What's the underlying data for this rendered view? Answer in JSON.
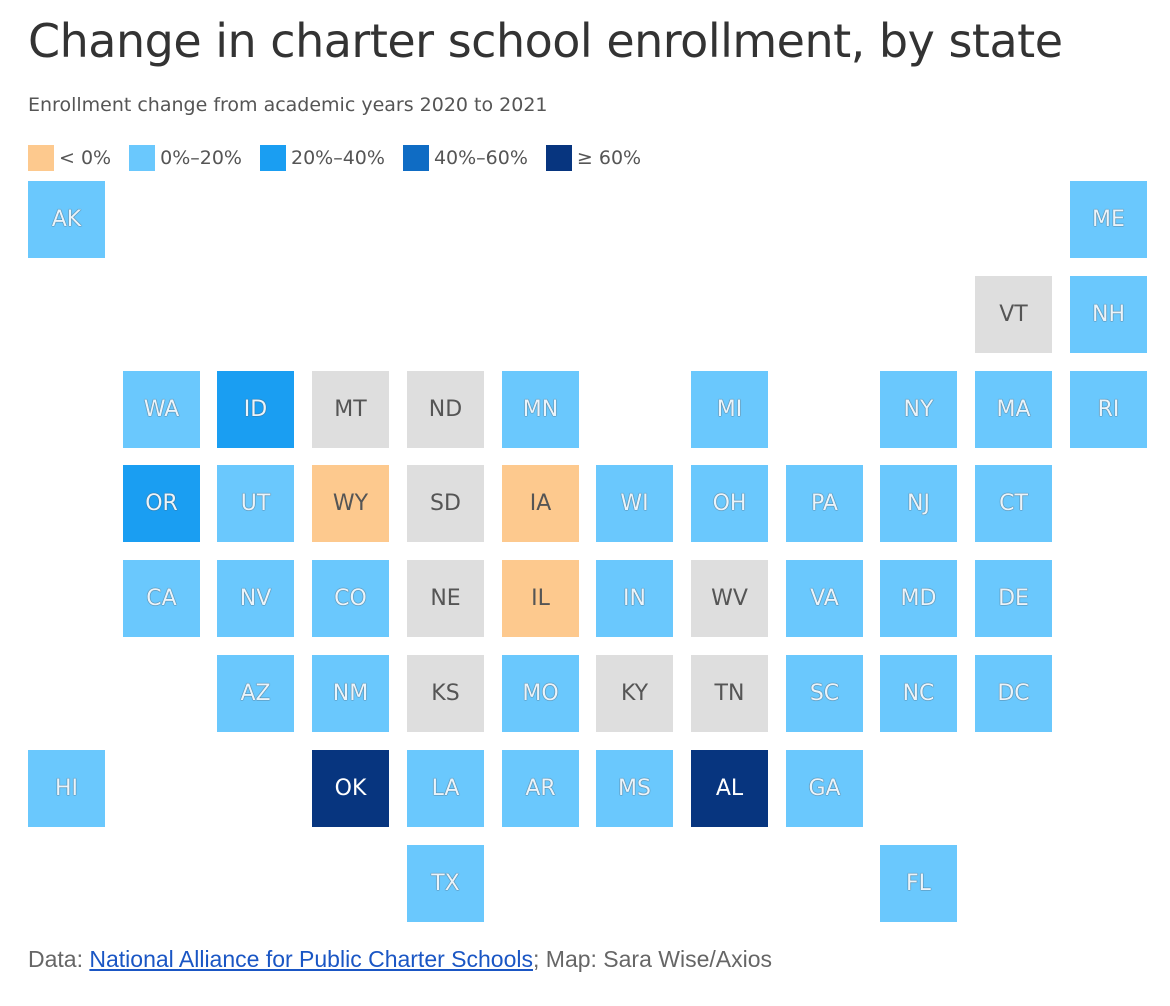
{
  "title": "Change in charter school enrollment, by state",
  "subtitle": "Enrollment change from academic years 2020 to 2021",
  "legend": [
    {
      "label": "< 0%",
      "color": "#fdc98e"
    },
    {
      "label": "0%–20%",
      "color": "#6ac8fd"
    },
    {
      "label": "20%–40%",
      "color": "#1a9ef2"
    },
    {
      "label": "40%–60%",
      "color": "#0f6cc4"
    },
    {
      "label": "≥ 60%",
      "color": "#07357f"
    }
  ],
  "no_data_color": "#dedede",
  "map_data": {
    "states": [
      {
        "abbr": "AK",
        "row": 0,
        "col": 0,
        "category": 1
      },
      {
        "abbr": "ME",
        "row": 0,
        "col": 11,
        "category": 1
      },
      {
        "abbr": "VT",
        "row": 1,
        "col": 10,
        "category": null
      },
      {
        "abbr": "NH",
        "row": 1,
        "col": 11,
        "category": 1
      },
      {
        "abbr": "WA",
        "row": 2,
        "col": 1,
        "category": 1
      },
      {
        "abbr": "ID",
        "row": 2,
        "col": 2,
        "category": 2
      },
      {
        "abbr": "MT",
        "row": 2,
        "col": 3,
        "category": null
      },
      {
        "abbr": "ND",
        "row": 2,
        "col": 4,
        "category": null
      },
      {
        "abbr": "MN",
        "row": 2,
        "col": 5,
        "category": 1
      },
      {
        "abbr": "MI",
        "row": 2,
        "col": 7,
        "category": 1
      },
      {
        "abbr": "NY",
        "row": 2,
        "col": 9,
        "category": 1
      },
      {
        "abbr": "MA",
        "row": 2,
        "col": 10,
        "category": 1
      },
      {
        "abbr": "RI",
        "row": 2,
        "col": 11,
        "category": 1
      },
      {
        "abbr": "OR",
        "row": 3,
        "col": 1,
        "category": 2
      },
      {
        "abbr": "UT",
        "row": 3,
        "col": 2,
        "category": 1
      },
      {
        "abbr": "WY",
        "row": 3,
        "col": 3,
        "category": 0
      },
      {
        "abbr": "SD",
        "row": 3,
        "col": 4,
        "category": null
      },
      {
        "abbr": "IA",
        "row": 3,
        "col": 5,
        "category": 0
      },
      {
        "abbr": "WI",
        "row": 3,
        "col": 6,
        "category": 1
      },
      {
        "abbr": "OH",
        "row": 3,
        "col": 7,
        "category": 1
      },
      {
        "abbr": "PA",
        "row": 3,
        "col": 8,
        "category": 1
      },
      {
        "abbr": "NJ",
        "row": 3,
        "col": 9,
        "category": 1
      },
      {
        "abbr": "CT",
        "row": 3,
        "col": 10,
        "category": 1
      },
      {
        "abbr": "CA",
        "row": 4,
        "col": 1,
        "category": 1
      },
      {
        "abbr": "NV",
        "row": 4,
        "col": 2,
        "category": 1
      },
      {
        "abbr": "CO",
        "row": 4,
        "col": 3,
        "category": 1
      },
      {
        "abbr": "NE",
        "row": 4,
        "col": 4,
        "category": null
      },
      {
        "abbr": "IL",
        "row": 4,
        "col": 5,
        "category": 0
      },
      {
        "abbr": "IN",
        "row": 4,
        "col": 6,
        "category": 1
      },
      {
        "abbr": "WV",
        "row": 4,
        "col": 7,
        "category": null
      },
      {
        "abbr": "VA",
        "row": 4,
        "col": 8,
        "category": 1
      },
      {
        "abbr": "MD",
        "row": 4,
        "col": 9,
        "category": 1
      },
      {
        "abbr": "DE",
        "row": 4,
        "col": 10,
        "category": 1
      },
      {
        "abbr": "AZ",
        "row": 5,
        "col": 2,
        "category": 1
      },
      {
        "abbr": "NM",
        "row": 5,
        "col": 3,
        "category": 1
      },
      {
        "abbr": "KS",
        "row": 5,
        "col": 4,
        "category": null
      },
      {
        "abbr": "MO",
        "row": 5,
        "col": 5,
        "category": 1
      },
      {
        "abbr": "KY",
        "row": 5,
        "col": 6,
        "category": null
      },
      {
        "abbr": "TN",
        "row": 5,
        "col": 7,
        "category": null
      },
      {
        "abbr": "SC",
        "row": 5,
        "col": 8,
        "category": 1
      },
      {
        "abbr": "NC",
        "row": 5,
        "col": 9,
        "category": 1
      },
      {
        "abbr": "DC",
        "row": 5,
        "col": 10,
        "category": 1
      },
      {
        "abbr": "HI",
        "row": 6,
        "col": 0,
        "category": 1
      },
      {
        "abbr": "OK",
        "row": 6,
        "col": 3,
        "category": 4
      },
      {
        "abbr": "LA",
        "row": 6,
        "col": 4,
        "category": 1
      },
      {
        "abbr": "AR",
        "row": 6,
        "col": 5,
        "category": 1
      },
      {
        "abbr": "MS",
        "row": 6,
        "col": 6,
        "category": 1
      },
      {
        "abbr": "AL",
        "row": 6,
        "col": 7,
        "category": 4
      },
      {
        "abbr": "GA",
        "row": 6,
        "col": 8,
        "category": 1
      },
      {
        "abbr": "TX",
        "row": 7,
        "col": 4,
        "category": 1
      },
      {
        "abbr": "FL",
        "row": 7,
        "col": 9,
        "category": 1
      }
    ]
  },
  "footer": {
    "prefix": "Data: ",
    "source_link": "National Alliance for Public Charter Schools",
    "suffix": "; Map: Sara Wise/Axios"
  }
}
